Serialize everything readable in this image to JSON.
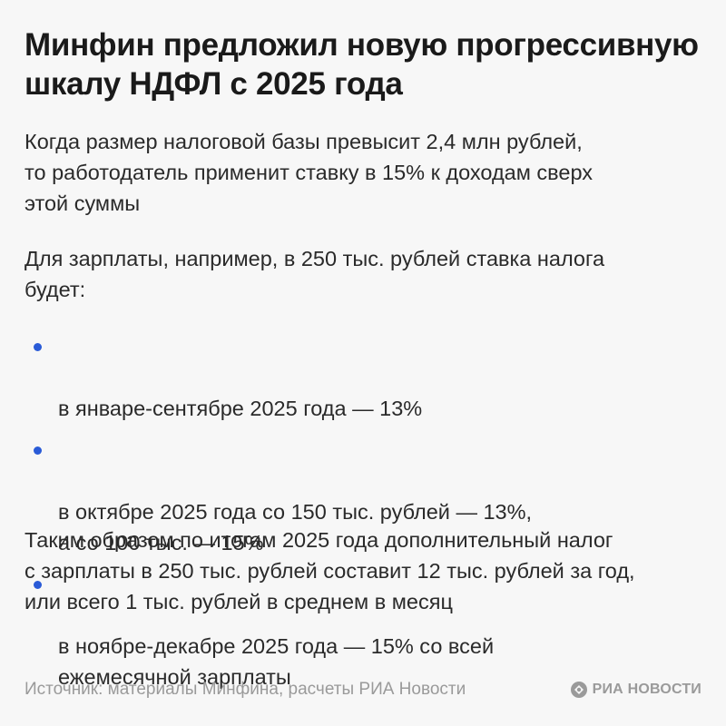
{
  "title": "Минфин предложил новую прогрессивную шкалу НДФЛ с 2025 года",
  "paragraph1": "Когда размер налоговой базы превысит 2,4 млн рублей,\nто работодатель применит ставку в 15% к доходам сверх\nэтой суммы",
  "paragraph2": "Для зарплаты, например, в 250 тыс. рублей ставка налога\nбудет:",
  "bullets": [
    "в январе-сентябре 2025 года — 13%",
    "в октябре 2025 года со 150 тыс. рублей — 13%,\nа со 100 тыс. — 15%",
    "в ноябре-декабре 2025 года — 15% со всей\nежемесячной зарплаты"
  ],
  "paragraph3": "Таким образом по итогам 2025 года дополнительный налог\nс зарплаты в 250 тыс. рублей составит 12 тыс. рублей за год,\nили всего 1 тыс. рублей в среднем в месяц",
  "footer": {
    "source": "Источник: материалы Минфина, расчеты РИА Новости",
    "logo_text": "РИА НОВОСТИ"
  },
  "colors": {
    "accent_bullet": "#2a5bd7",
    "footer_text": "#9a9a9a",
    "background": "#f7f7f7"
  },
  "icons": {
    "bullet": "dot",
    "logo": "ria-novosti-logo-icon"
  }
}
